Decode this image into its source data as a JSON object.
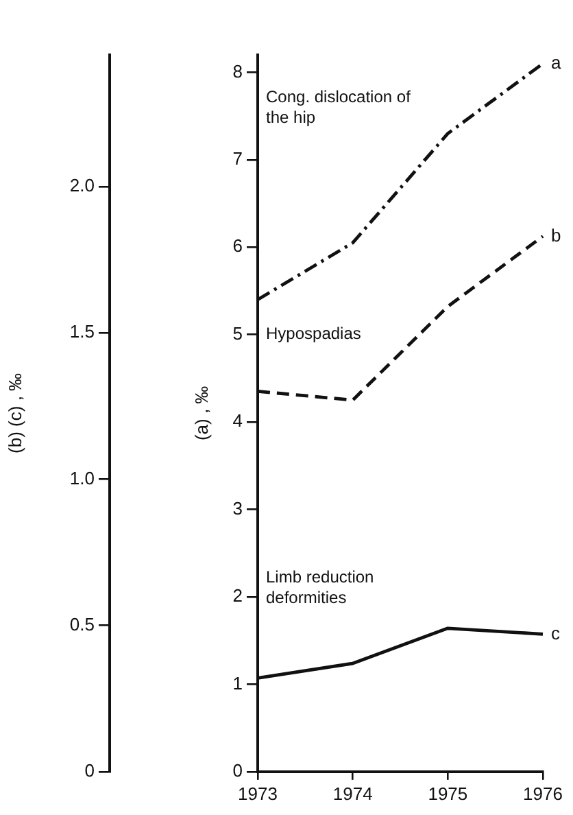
{
  "chart_data": {
    "type": "line",
    "ylabel": "(a) , ‰",
    "y2label": "(b) (c) , ‰",
    "categories": [
      "1973",
      "1974",
      "1975",
      "1976"
    ],
    "series": [
      {
        "name": "a",
        "color": "#111111",
        "values": [
          5.4,
          6.05,
          7.3,
          8.1
        ],
        "line_style": "dashdot"
      },
      {
        "name": "b",
        "color": "#111111",
        "values": [
          1.3,
          1.27,
          1.59,
          1.83
        ],
        "axis": "y2",
        "line_style": "dashed"
      },
      {
        "name": "c",
        "color": "#111111",
        "values": [
          0.32,
          0.37,
          0.49,
          0.47
        ],
        "axis": "y2",
        "line_style": "solid"
      }
    ],
    "ylim": [
      0,
      8.2
    ],
    "yticks": [
      0,
      1,
      2,
      3,
      4,
      5,
      6,
      7,
      8
    ],
    "y2lim": [
      0,
      2.45
    ],
    "y2ticks": [
      {
        "value": 0,
        "label": "0"
      },
      {
        "value": 0.5,
        "label": "0.5"
      },
      {
        "value": 1,
        "label": "1.0"
      },
      {
        "value": 1.5,
        "label": "1.5"
      },
      {
        "value": 2,
        "label": "2.0"
      }
    ],
    "annotations": [
      "Cong. dislocation of the hip",
      "Hypospadias",
      "Limb reduction deformities"
    ],
    "grid": false,
    "legend": false,
    "marker": "none"
  }
}
